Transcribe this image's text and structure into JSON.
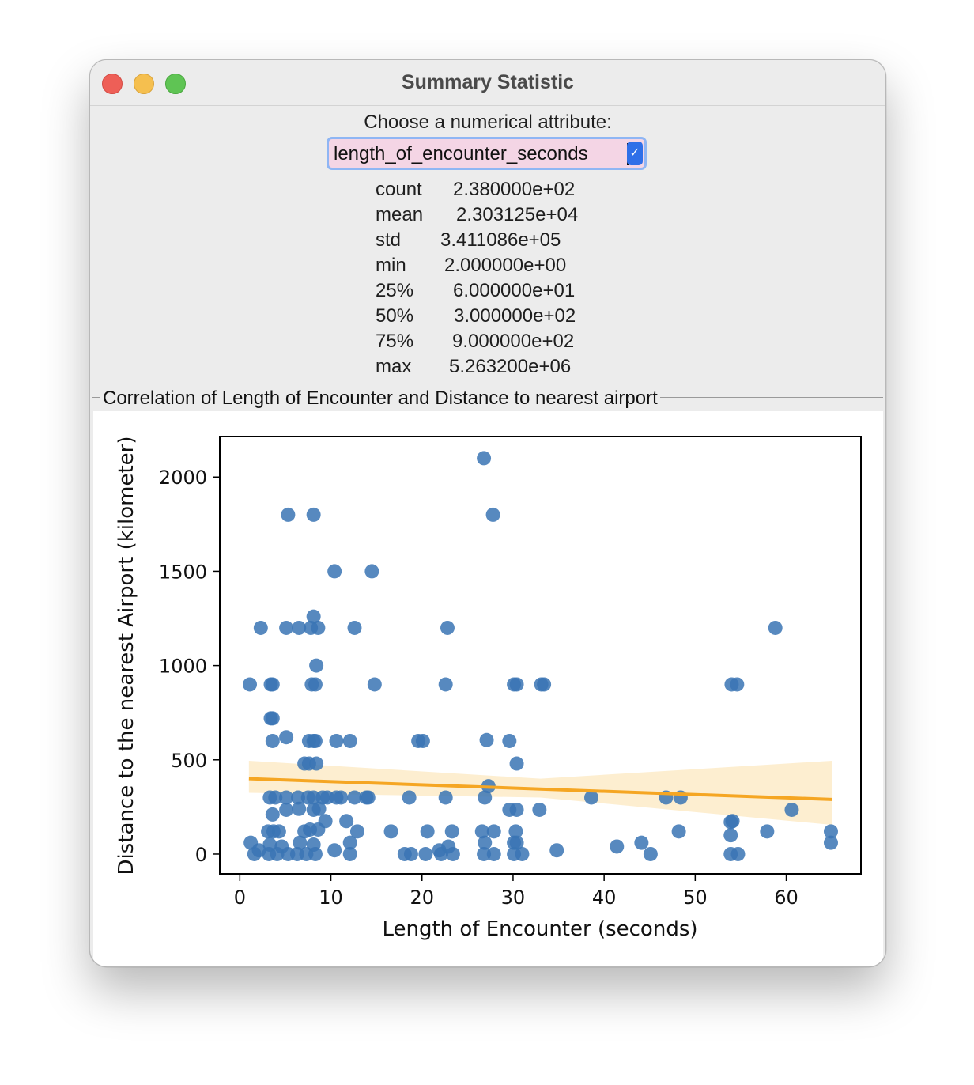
{
  "window": {
    "title": "Summary Statistic"
  },
  "prompt": "Choose a numerical attribute:",
  "select": {
    "value": "length_of_encounter_seconds"
  },
  "stats": [
    {
      "key": "count",
      "value": "2.380000e+02"
    },
    {
      "key": "mean",
      "value": "2.303125e+04"
    },
    {
      "key": "std",
      "value": "3.411086e+05"
    },
    {
      "key": "min",
      "value": "2.000000e+00"
    },
    {
      "key": "25%",
      "value": "6.000000e+01"
    },
    {
      "key": "50%",
      "value": "3.000000e+02"
    },
    {
      "key": "75%",
      "value": "9.000000e+02"
    },
    {
      "key": "max",
      "value": "5.263200e+06"
    }
  ],
  "frame_label": "Correlation of Length of Encounter and Distance to nearest airport",
  "colors": {
    "points": "#3a74b4",
    "trend": "#f5a623",
    "band": "#fdebc8"
  },
  "chart_data": {
    "type": "scatter",
    "title": "",
    "xlabel": "Length of Encounter (seconds)",
    "ylabel": "Distance to the nearest Airport (kilometer)",
    "xlim": [
      -2.2,
      68.2
    ],
    "ylim": [
      -105,
      2215
    ],
    "xticks": [
      0,
      10,
      20,
      30,
      40,
      50,
      60
    ],
    "yticks": [
      0,
      500,
      1000,
      1500,
      2000
    ],
    "trend": {
      "x": [
        1,
        65
      ],
      "y": [
        400,
        290
      ]
    },
    "band": {
      "x": [
        1,
        33,
        65
      ],
      "upper": [
        495,
        400,
        495
      ],
      "lower": [
        325,
        300,
        155
      ]
    },
    "points": [
      [
        26.8,
        2100
      ],
      [
        5.3,
        1800
      ],
      [
        8.1,
        1800
      ],
      [
        27.8,
        1800
      ],
      [
        10.4,
        1500
      ],
      [
        14.5,
        1500
      ],
      [
        2.3,
        1200
      ],
      [
        5.1,
        1200
      ],
      [
        6.5,
        1200
      ],
      [
        7.8,
        1200
      ],
      [
        8.6,
        1200
      ],
      [
        12.6,
        1200
      ],
      [
        22.8,
        1200
      ],
      [
        58.8,
        1200
      ],
      [
        8.1,
        1260
      ],
      [
        8.4,
        1000
      ],
      [
        1.1,
        900
      ],
      [
        3.4,
        900
      ],
      [
        3.6,
        900
      ],
      [
        7.9,
        900
      ],
      [
        8.3,
        900
      ],
      [
        14.8,
        900
      ],
      [
        22.6,
        900
      ],
      [
        30.1,
        900
      ],
      [
        30.4,
        900
      ],
      [
        33.1,
        900
      ],
      [
        33.4,
        900
      ],
      [
        54.0,
        900
      ],
      [
        54.6,
        900
      ],
      [
        3.4,
        720
      ],
      [
        3.6,
        720
      ],
      [
        3.6,
        600
      ],
      [
        5.1,
        620
      ],
      [
        7.6,
        600
      ],
      [
        8.1,
        600
      ],
      [
        8.3,
        600
      ],
      [
        10.6,
        600
      ],
      [
        12.1,
        600
      ],
      [
        19.6,
        600
      ],
      [
        20.1,
        600
      ],
      [
        27.1,
        605
      ],
      [
        29.6,
        600
      ],
      [
        7.1,
        480
      ],
      [
        7.6,
        480
      ],
      [
        8.4,
        480
      ],
      [
        30.4,
        480
      ],
      [
        3.3,
        300
      ],
      [
        3.9,
        300
      ],
      [
        5.1,
        300
      ],
      [
        6.4,
        300
      ],
      [
        7.5,
        300
      ],
      [
        8.1,
        300
      ],
      [
        9.1,
        300
      ],
      [
        9.6,
        300
      ],
      [
        10.6,
        300
      ],
      [
        11.1,
        300
      ],
      [
        12.6,
        300
      ],
      [
        13.9,
        300
      ],
      [
        14.1,
        300
      ],
      [
        18.6,
        300
      ],
      [
        22.6,
        300
      ],
      [
        26.9,
        300
      ],
      [
        27.3,
        360
      ],
      [
        38.6,
        300
      ],
      [
        46.8,
        300
      ],
      [
        48.4,
        300
      ],
      [
        3.6,
        210
      ],
      [
        5.1,
        235
      ],
      [
        6.5,
        240
      ],
      [
        8.1,
        235
      ],
      [
        8.7,
        240
      ],
      [
        29.6,
        235
      ],
      [
        30.4,
        235
      ],
      [
        32.9,
        235
      ],
      [
        60.6,
        235
      ],
      [
        3.1,
        120
      ],
      [
        3.7,
        120
      ],
      [
        4.3,
        120
      ],
      [
        7.1,
        120
      ],
      [
        7.7,
        130
      ],
      [
        8.6,
        130
      ],
      [
        9.4,
        175
      ],
      [
        11.7,
        175
      ],
      [
        12.9,
        120
      ],
      [
        16.6,
        120
      ],
      [
        20.6,
        120
      ],
      [
        23.3,
        120
      ],
      [
        26.6,
        120
      ],
      [
        27.9,
        120
      ],
      [
        30.3,
        120
      ],
      [
        48.2,
        120
      ],
      [
        53.9,
        100
      ],
      [
        53.9,
        170
      ],
      [
        54.1,
        175
      ],
      [
        57.9,
        120
      ],
      [
        64.9,
        120
      ],
      [
        1.2,
        60
      ],
      [
        2.1,
        20
      ],
      [
        3.3,
        50
      ],
      [
        4.6,
        40
      ],
      [
        6.6,
        60
      ],
      [
        8.1,
        50
      ],
      [
        10.4,
        20
      ],
      [
        12.1,
        60
      ],
      [
        21.9,
        20
      ],
      [
        22.9,
        40
      ],
      [
        26.9,
        60
      ],
      [
        30.1,
        60
      ],
      [
        30.4,
        60
      ],
      [
        34.8,
        20
      ],
      [
        41.4,
        40
      ],
      [
        44.1,
        60
      ],
      [
        64.9,
        60
      ],
      [
        1.6,
        0
      ],
      [
        3.2,
        0
      ],
      [
        4.1,
        0
      ],
      [
        5.3,
        0
      ],
      [
        6.3,
        0
      ],
      [
        7.3,
        0
      ],
      [
        8.3,
        0
      ],
      [
        12.1,
        0
      ],
      [
        18.1,
        0
      ],
      [
        18.8,
        0
      ],
      [
        20.4,
        0
      ],
      [
        22.1,
        0
      ],
      [
        23.4,
        0
      ],
      [
        26.8,
        0
      ],
      [
        27.9,
        0
      ],
      [
        30.1,
        0
      ],
      [
        31.0,
        0
      ],
      [
        45.1,
        0
      ],
      [
        53.9,
        0
      ],
      [
        54.7,
        0
      ]
    ]
  }
}
